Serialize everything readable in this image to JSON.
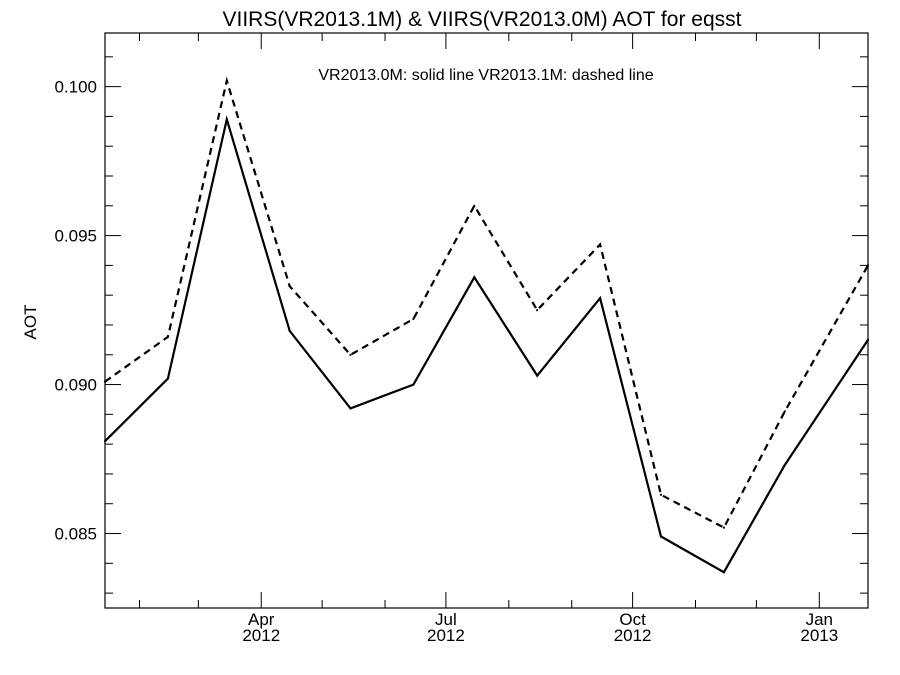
{
  "chart_data": {
    "type": "line",
    "title": "VIIRS(VR2013.1M) & VIIRS(VR2013.0M)  AOT for eqsst",
    "annotation": "VR2013.0M: solid line   VR2013.1M: dashed line",
    "ylabel": "AOT",
    "xlabel": "",
    "ylim": [
      0.0825,
      0.1018
    ],
    "xlim": [
      "2012-01-15",
      "2013-01-25"
    ],
    "yticks": [
      {
        "value": 0.085,
        "label": "0.085"
      },
      {
        "value": 0.09,
        "label": "0.090"
      },
      {
        "value": 0.095,
        "label": "0.095"
      },
      {
        "value": 0.1,
        "label": "0.100"
      }
    ],
    "xticks": [
      {
        "date": "2012-04-01",
        "month": "Apr",
        "year": "2012"
      },
      {
        "date": "2012-07-01",
        "month": "Jul",
        "year": "2012"
      },
      {
        "date": "2012-10-01",
        "month": "Oct",
        "year": "2012"
      },
      {
        "date": "2013-01-01",
        "month": "Jan",
        "year": "2013"
      }
    ],
    "x": [
      "2012-01-15",
      "2012-02-15",
      "2012-03-15",
      "2012-04-15",
      "2012-05-15",
      "2012-06-15",
      "2012-07-15",
      "2012-08-15",
      "2012-09-15",
      "2012-10-15",
      "2012-11-15",
      "2012-12-15",
      "2013-01-25"
    ],
    "series": [
      {
        "name": "VR2013.0M",
        "style": "solid",
        "color": "#000000",
        "values": [
          0.0881,
          0.0902,
          0.0989,
          0.0918,
          0.0892,
          0.09,
          0.0936,
          0.0903,
          0.0929,
          0.0849,
          0.0837,
          0.0873,
          0.0915
        ]
      },
      {
        "name": "VR2013.1M",
        "style": "dashed",
        "color": "#000000",
        "values": [
          0.0901,
          0.0916,
          0.1002,
          0.0933,
          0.091,
          0.0922,
          0.096,
          0.0925,
          0.0947,
          0.0863,
          0.0852,
          0.0891,
          0.094
        ]
      }
    ],
    "grid": false,
    "legend": "none"
  }
}
